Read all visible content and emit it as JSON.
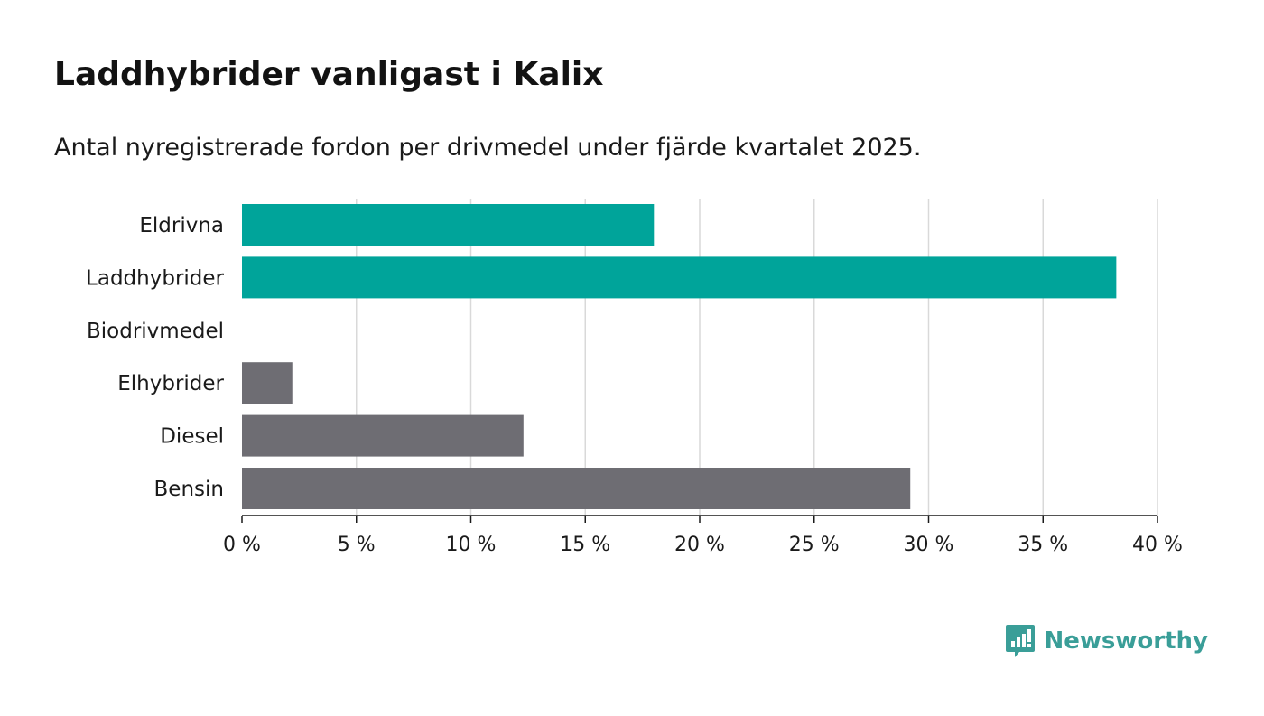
{
  "title": "Laddhybrider vanligast i Kalix",
  "subtitle": "Antal nyregistrerade fordon per drivmedel under fjärde kvartalet 2025.",
  "brand": {
    "name": "Newsworthy",
    "icon": "newsworthy-logo-icon",
    "color": "#3a9e98"
  },
  "chart_data": {
    "type": "bar",
    "orientation": "horizontal",
    "categories": [
      "Eldrivna",
      "Laddhybrider",
      "Biodrivmedel",
      "Elhybrider",
      "Diesel",
      "Bensin"
    ],
    "values": [
      18,
      38.2,
      0,
      2.2,
      12.3,
      29.2
    ],
    "colors": [
      "#00a49a",
      "#00a49a",
      "#00a49a",
      "#6e6d73",
      "#6e6d73",
      "#6e6d73"
    ],
    "xlim": [
      0,
      40
    ],
    "xticks": [
      0,
      5,
      10,
      15,
      20,
      25,
      30,
      35,
      40
    ],
    "tick_labels": [
      "0 %",
      "5 %",
      "10 %",
      "15 %",
      "20 %",
      "25 %",
      "30 %",
      "35 %",
      "40 %"
    ],
    "grid": true,
    "title": "",
    "xlabel": "",
    "ylabel": ""
  }
}
